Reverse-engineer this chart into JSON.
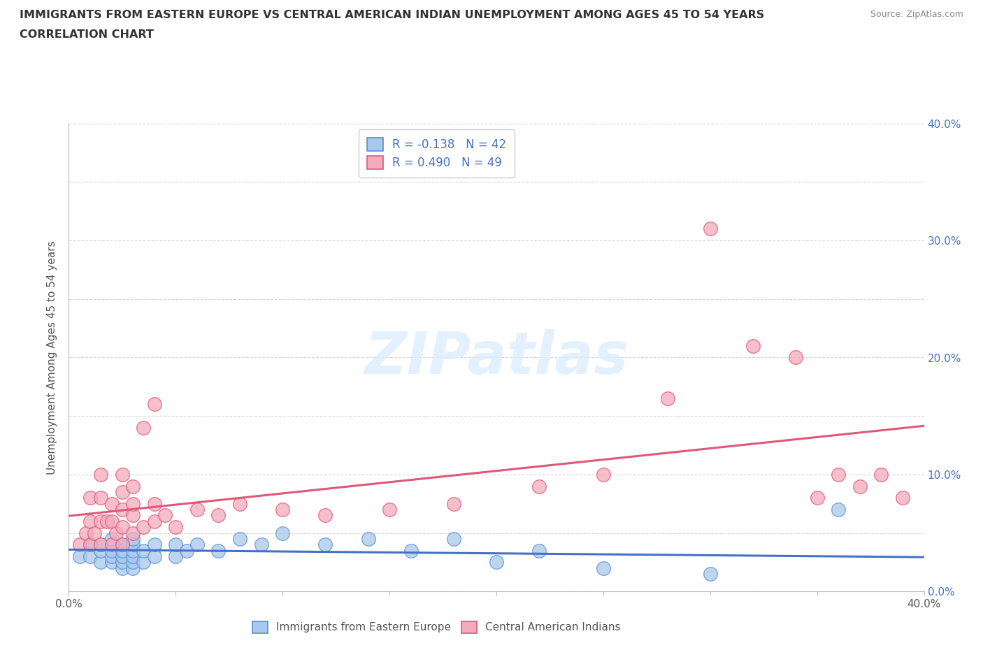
{
  "title_line1": "IMMIGRANTS FROM EASTERN EUROPE VS CENTRAL AMERICAN INDIAN UNEMPLOYMENT AMONG AGES 45 TO 54 YEARS",
  "title_line2": "CORRELATION CHART",
  "source_text": "Source: ZipAtlas.com",
  "ylabel": "Unemployment Among Ages 45 to 54 years",
  "xlim": [
    0.0,
    0.4
  ],
  "ylim": [
    0.0,
    0.4
  ],
  "watermark": "ZIPatlas",
  "blue_R": -0.138,
  "blue_N": 42,
  "pink_R": 0.49,
  "pink_N": 49,
  "blue_color": "#A8C8EC",
  "pink_color": "#F4AABB",
  "blue_edge_color": "#5B8FD0",
  "pink_edge_color": "#E05878",
  "blue_line_color": "#4472C4",
  "pink_line_color": "#E05878",
  "background_color": "#FFFFFF",
  "grid_color": "#CCCCCC",
  "blue_scatter_x": [
    0.005,
    0.01,
    0.01,
    0.015,
    0.015,
    0.015,
    0.02,
    0.02,
    0.02,
    0.02,
    0.025,
    0.025,
    0.025,
    0.025,
    0.025,
    0.03,
    0.03,
    0.03,
    0.03,
    0.03,
    0.03,
    0.035,
    0.035,
    0.04,
    0.04,
    0.05,
    0.05,
    0.055,
    0.06,
    0.07,
    0.08,
    0.09,
    0.1,
    0.12,
    0.14,
    0.16,
    0.18,
    0.2,
    0.22,
    0.25,
    0.3,
    0.36
  ],
  "blue_scatter_y": [
    0.03,
    0.03,
    0.04,
    0.025,
    0.035,
    0.04,
    0.025,
    0.03,
    0.035,
    0.045,
    0.02,
    0.025,
    0.03,
    0.035,
    0.04,
    0.02,
    0.025,
    0.03,
    0.035,
    0.04,
    0.045,
    0.025,
    0.035,
    0.03,
    0.04,
    0.03,
    0.04,
    0.035,
    0.04,
    0.035,
    0.045,
    0.04,
    0.05,
    0.04,
    0.045,
    0.035,
    0.045,
    0.025,
    0.035,
    0.02,
    0.015,
    0.07
  ],
  "pink_scatter_x": [
    0.005,
    0.008,
    0.01,
    0.01,
    0.01,
    0.012,
    0.015,
    0.015,
    0.015,
    0.015,
    0.018,
    0.02,
    0.02,
    0.02,
    0.022,
    0.025,
    0.025,
    0.025,
    0.025,
    0.025,
    0.03,
    0.03,
    0.03,
    0.03,
    0.035,
    0.035,
    0.04,
    0.04,
    0.04,
    0.045,
    0.05,
    0.06,
    0.07,
    0.08,
    0.1,
    0.12,
    0.15,
    0.18,
    0.22,
    0.25,
    0.28,
    0.3,
    0.32,
    0.34,
    0.35,
    0.36,
    0.37,
    0.38,
    0.39
  ],
  "pink_scatter_y": [
    0.04,
    0.05,
    0.04,
    0.06,
    0.08,
    0.05,
    0.04,
    0.06,
    0.08,
    0.1,
    0.06,
    0.04,
    0.06,
    0.075,
    0.05,
    0.04,
    0.055,
    0.07,
    0.085,
    0.1,
    0.05,
    0.065,
    0.075,
    0.09,
    0.055,
    0.14,
    0.06,
    0.075,
    0.16,
    0.065,
    0.055,
    0.07,
    0.065,
    0.075,
    0.07,
    0.065,
    0.07,
    0.075,
    0.09,
    0.1,
    0.165,
    0.31,
    0.21,
    0.2,
    0.08,
    0.1,
    0.09,
    0.1,
    0.08
  ]
}
